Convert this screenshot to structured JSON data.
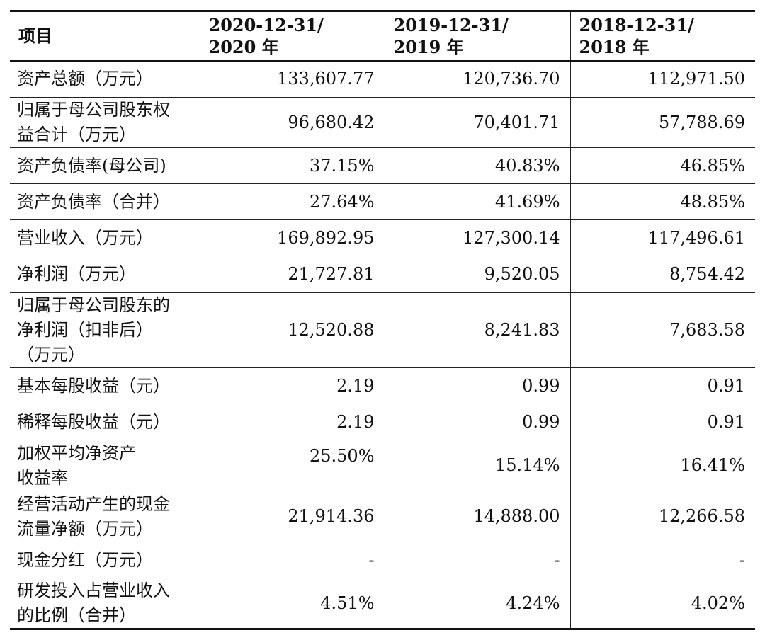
{
  "table": {
    "headers": [
      {
        "line1": "项目",
        "line2": ""
      },
      {
        "line1": "2020-12-31/",
        "line2": "2020 年"
      },
      {
        "line1": "2019-12-31/",
        "line2": "2019 年"
      },
      {
        "line1": "2018-12-31/",
        "line2": "2018 年"
      }
    ],
    "rows": [
      {
        "label": [
          "资产总额（万元）"
        ],
        "values": [
          "133,607.77",
          "120,736.70",
          "112,971.50"
        ]
      },
      {
        "label": [
          "归属于母公司股东权",
          "益合计（万元）"
        ],
        "values": [
          "96,680.42",
          "70,401.71",
          "57,788.69"
        ]
      },
      {
        "label": [
          "资产负债率(母公司)"
        ],
        "values": [
          "37.15%",
          "40.83%",
          "46.85%"
        ]
      },
      {
        "label": [
          "资产负债率（合并）"
        ],
        "values": [
          "27.64%",
          "41.69%",
          "48.85%"
        ]
      },
      {
        "label": [
          "营业收入（万元）"
        ],
        "values": [
          "169,892.95",
          "127,300.14",
          "117,496.61"
        ]
      },
      {
        "label": [
          "净利润（万元）"
        ],
        "values": [
          "21,727.81",
          "9,520.05",
          "8,754.42"
        ]
      },
      {
        "label": [
          "归属于母公司股东的",
          "净利润（扣非后）",
          "（万元）"
        ],
        "values": [
          "12,520.88",
          "8,241.83",
          "7,683.58"
        ]
      },
      {
        "label": [
          "基本每股收益（元）"
        ],
        "values": [
          "2.19",
          "0.99",
          "0.91"
        ]
      },
      {
        "label": [
          "稀释每股收益（元）"
        ],
        "values": [
          "2.19",
          "0.99",
          "0.91"
        ]
      },
      {
        "label": [
          "加权平均净资产",
          "收益率"
        ],
        "values": [
          "25.50%",
          "15.14%",
          "16.41%"
        ]
      },
      {
        "label": [
          "经营活动产生的现金",
          "流量净额（万元）"
        ],
        "values": [
          "21,914.36",
          "14,888.00",
          "12,266.58"
        ]
      },
      {
        "label": [
          "现金分红（万元）"
        ],
        "values": [
          "-",
          "-",
          "-"
        ]
      },
      {
        "label": [
          "研发投入占营业收入",
          "的比例（合并）"
        ],
        "values": [
          "4.51%",
          "4.24%",
          "4.02%"
        ]
      }
    ]
  }
}
